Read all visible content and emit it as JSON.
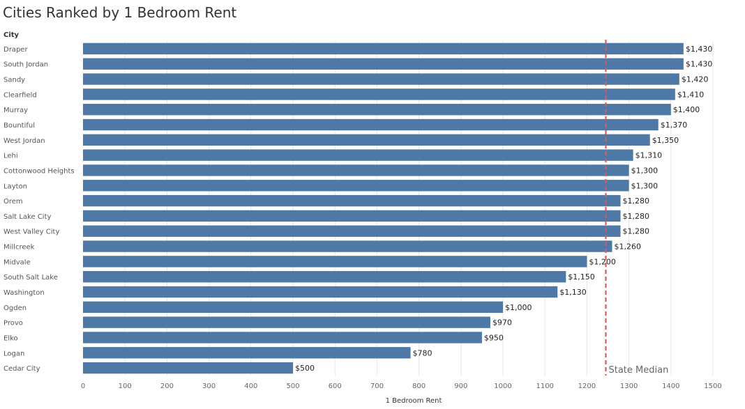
{
  "chart_data": {
    "type": "bar",
    "orientation": "horizontal",
    "title": "Cities Ranked by 1 Bedroom Rent",
    "row_header": "City",
    "xlabel": "1 Bedroom Rent",
    "xlim": [
      0,
      1550
    ],
    "xticks": [
      0,
      100,
      200,
      300,
      400,
      500,
      600,
      700,
      800,
      900,
      1000,
      1100,
      1200,
      1300,
      1400,
      1500
    ],
    "bar_color": "#4e79a7",
    "categories": [
      "Draper",
      "South Jordan",
      "Sandy",
      "Clearfield",
      "Murray",
      "Bountiful",
      "West Jordan",
      "Lehi",
      "Cottonwood Heights",
      "Layton",
      "Orem",
      "Salt Lake City",
      "West Valley City",
      "Millcreek",
      "Midvale",
      "South Salt Lake",
      "Washington",
      "Ogden",
      "Provo",
      "Elko",
      "Logan",
      "Cedar City"
    ],
    "values": [
      1430,
      1430,
      1420,
      1410,
      1400,
      1370,
      1350,
      1310,
      1300,
      1300,
      1280,
      1280,
      1280,
      1260,
      1200,
      1150,
      1130,
      1000,
      970,
      950,
      780,
      500
    ],
    "value_labels": [
      "$1,430",
      "$1,430",
      "$1,420",
      "$1,410",
      "$1,400",
      "$1,370",
      "$1,350",
      "$1,310",
      "$1,300",
      "$1,300",
      "$1,280",
      "$1,280",
      "$1,280",
      "$1,260",
      "$1,200",
      "$1,150",
      "$1,130",
      "$1,000",
      "$970",
      "$950",
      "$780",
      "$500"
    ],
    "reference_line": {
      "value": 1245,
      "label": "State Median",
      "color": "#e15759"
    },
    "grid": true
  }
}
